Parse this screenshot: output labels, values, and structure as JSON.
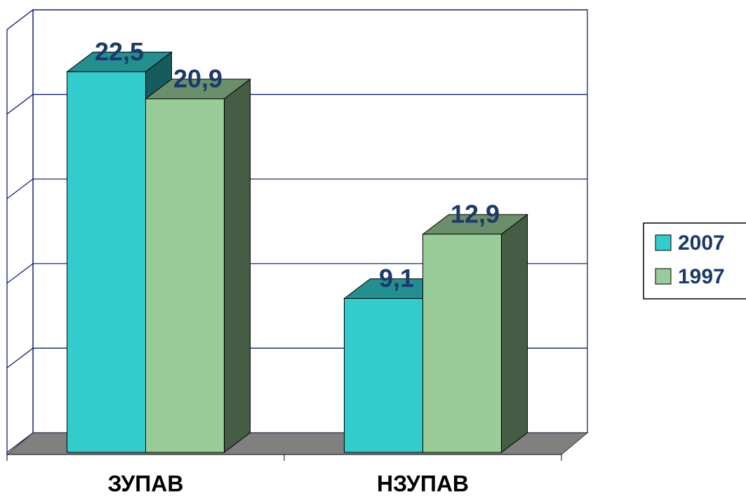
{
  "chart_data": {
    "type": "bar3d",
    "categories": [
      "ЗУПАВ",
      "НЗУПАВ"
    ],
    "series": [
      {
        "name": "2007",
        "color": "#33cccc",
        "values": [
          22.5,
          9.1
        ],
        "value_labels": [
          "22,5",
          "9,1"
        ]
      },
      {
        "name": "1997",
        "color": "#99cc99",
        "values": [
          20.9,
          12.9
        ],
        "value_labels": [
          "20,9",
          "12,9"
        ]
      }
    ],
    "ylim": [
      0,
      25
    ],
    "yticks": [
      0,
      5,
      10,
      15,
      20,
      25
    ],
    "grid": true,
    "legend": "right"
  }
}
